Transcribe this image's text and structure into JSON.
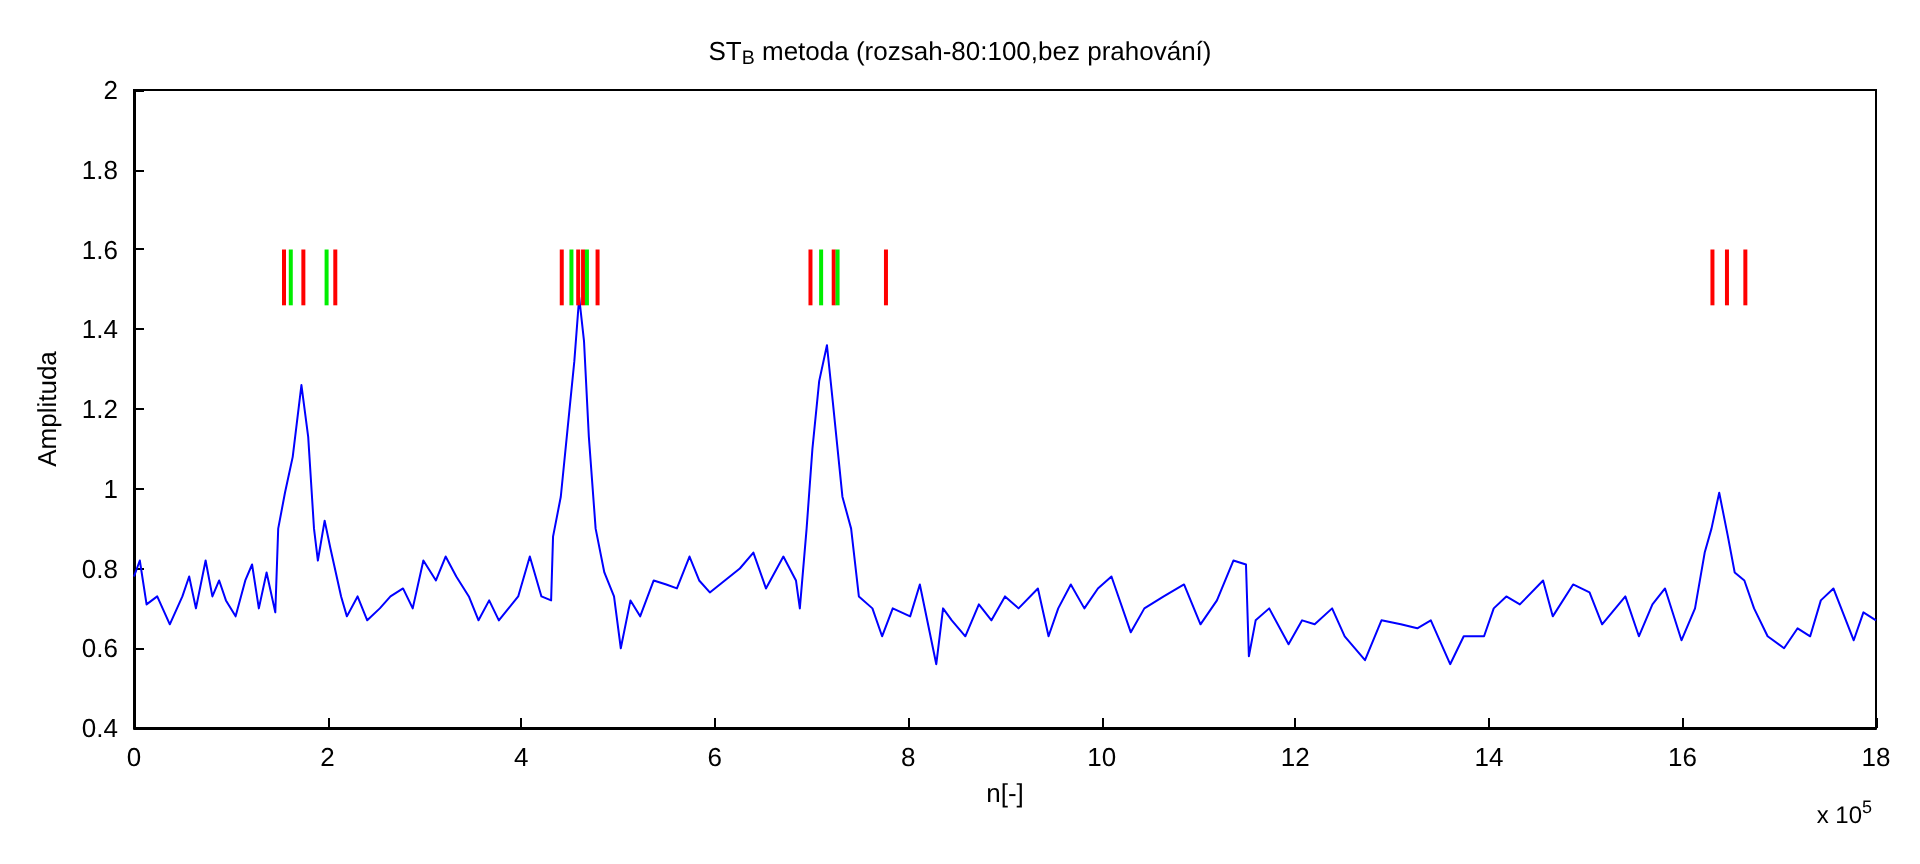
{
  "chart_data": {
    "type": "line",
    "title": "ST$_{B}$ metoda (rozsah-80:100,bez prahování)",
    "xlabel": "n[-]",
    "ylabel": "Amplituda",
    "annotations": [
      "x 10$^{5}$"
    ],
    "xlim": [
      0,
      18
    ],
    "xticks": [
      0,
      2,
      4,
      6,
      8,
      10,
      12,
      14,
      16,
      18
    ],
    "ylim": [
      0.4,
      2
    ],
    "yticks": [
      0.4,
      0.6,
      0.8,
      1,
      1.2,
      1.4,
      1.6,
      1.8,
      2
    ],
    "grid": false,
    "marker": "none",
    "line_style": "solid",
    "series": [
      {
        "color": "#0000ff",
        "x": [
          0,
          0.06,
          0.13,
          0.24,
          0.37,
          0.5,
          0.57,
          0.64,
          0.74,
          0.81,
          0.88,
          0.95,
          1.05,
          1.15,
          1.22,
          1.29,
          1.37,
          1.46,
          1.49,
          1.56,
          1.64,
          1.73,
          1.8,
          1.86,
          1.9,
          1.97,
          2.03,
          2.14,
          2.2,
          2.31,
          2.41,
          2.54,
          2.65,
          2.78,
          2.88,
          2.99,
          3.12,
          3.22,
          3.33,
          3.46,
          3.56,
          3.67,
          3.77,
          3.87,
          3.97,
          4.09,
          4.21,
          4.31,
          4.33,
          4.41,
          4.48,
          4.55,
          4.6,
          4.65,
          4.7,
          4.77,
          4.86,
          4.96,
          5.03,
          5.13,
          5.23,
          5.37,
          5.5,
          5.61,
          5.74,
          5.84,
          5.95,
          6.26,
          6.4,
          6.53,
          6.71,
          6.84,
          6.88,
          6.95,
          7.01,
          7.08,
          7.16,
          7.22,
          7.32,
          7.41,
          7.49,
          7.63,
          7.73,
          7.84,
          8.02,
          8.12,
          8.29,
          8.36,
          8.45,
          8.59,
          8.73,
          8.86,
          9,
          9.14,
          9.34,
          9.45,
          9.55,
          9.68,
          9.82,
          9.96,
          10.1,
          10.3,
          10.44,
          10.64,
          10.85,
          11.02,
          11.19,
          11.36,
          11.49,
          11.52,
          11.59,
          11.73,
          11.93,
          12.07,
          12.2,
          12.38,
          12.51,
          12.72,
          12.89,
          13.09,
          13.26,
          13.4,
          13.6,
          13.74,
          13.95,
          14.05,
          14.18,
          14.32,
          14.56,
          14.66,
          14.87,
          15.04,
          15.17,
          15.41,
          15.55,
          15.69,
          15.82,
          15.99,
          16.13,
          16.23,
          16.3,
          16.38,
          16.47,
          16.54,
          16.64,
          16.74,
          16.88,
          17.05,
          17.19,
          17.32,
          17.43,
          17.56,
          17.77,
          17.87,
          18
        ],
        "values": [
          0.78,
          0.82,
          0.71,
          0.73,
          0.66,
          0.73,
          0.78,
          0.7,
          0.82,
          0.73,
          0.77,
          0.72,
          0.68,
          0.77,
          0.81,
          0.7,
          0.79,
          0.69,
          0.9,
          0.99,
          1.08,
          1.26,
          1.13,
          0.9,
          0.82,
          0.92,
          0.85,
          0.73,
          0.68,
          0.73,
          0.67,
          0.7,
          0.73,
          0.75,
          0.7,
          0.82,
          0.77,
          0.83,
          0.78,
          0.73,
          0.67,
          0.72,
          0.67,
          0.7,
          0.73,
          0.83,
          0.73,
          0.72,
          0.88,
          0.98,
          1.15,
          1.32,
          1.48,
          1.37,
          1.13,
          0.9,
          0.79,
          0.73,
          0.6,
          0.72,
          0.68,
          0.77,
          0.76,
          0.75,
          0.83,
          0.77,
          0.74,
          0.8,
          0.84,
          0.75,
          0.83,
          0.77,
          0.7,
          0.9,
          1.1,
          1.27,
          1.36,
          1.22,
          0.98,
          0.9,
          0.73,
          0.7,
          0.63,
          0.7,
          0.68,
          0.76,
          0.56,
          0.7,
          0.67,
          0.63,
          0.71,
          0.67,
          0.73,
          0.7,
          0.75,
          0.63,
          0.7,
          0.76,
          0.7,
          0.75,
          0.78,
          0.64,
          0.7,
          0.73,
          0.76,
          0.66,
          0.72,
          0.82,
          0.81,
          0.58,
          0.67,
          0.7,
          0.61,
          0.67,
          0.66,
          0.7,
          0.63,
          0.57,
          0.67,
          0.66,
          0.65,
          0.67,
          0.56,
          0.63,
          0.63,
          0.7,
          0.73,
          0.71,
          0.77,
          0.68,
          0.76,
          0.74,
          0.66,
          0.73,
          0.63,
          0.71,
          0.75,
          0.62,
          0.7,
          0.84,
          0.9,
          0.99,
          0.88,
          0.79,
          0.77,
          0.7,
          0.63,
          0.6,
          0.65,
          0.63,
          0.72,
          0.75,
          0.62,
          0.69,
          0.67
        ]
      },
      {
        "type": "bar",
        "color": "#ff0000",
        "x": [
          1.55,
          1.75,
          2.08,
          4.42,
          4.59,
          4.64,
          4.79,
          6.99,
          7.23,
          7.77,
          16.31,
          16.46,
          16.65
        ],
        "base": [
          1.46,
          1.46,
          1.46,
          1.46,
          1.46,
          1.46,
          1.46,
          1.46,
          1.46,
          1.46,
          1.46,
          1.46,
          1.46
        ],
        "values": [
          0.14,
          0.14,
          0.14,
          0.14,
          0.14,
          0.14,
          0.14,
          0.14,
          0.14,
          0.14,
          0.14,
          0.14,
          0.14
        ]
      },
      {
        "type": "bar",
        "color": "#00ee00",
        "x": [
          1.62,
          1.99,
          4.52,
          4.68,
          7.1,
          7.27
        ],
        "base": [
          1.46,
          1.46,
          1.46,
          1.46,
          1.46,
          1.46
        ],
        "values": [
          0.14,
          0.14,
          0.14,
          0.14,
          0.14,
          0.14
        ]
      }
    ]
  }
}
